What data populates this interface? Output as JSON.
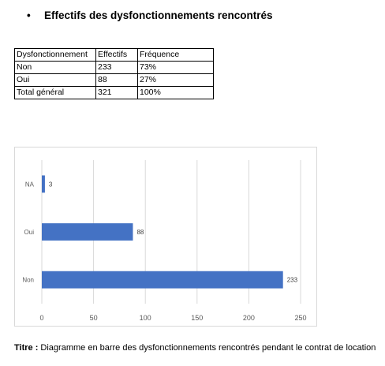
{
  "heading": {
    "bullet": "•",
    "text": "Effectifs des dysfonctionnements rencontrés"
  },
  "table": {
    "headers": [
      "Dysfonctionnement",
      "Effectifs",
      "Fréquence"
    ],
    "rows": [
      [
        "Non",
        "233",
        "73%"
      ],
      [
        "Oui",
        "88",
        "27%"
      ],
      [
        "Total général",
        "321",
        "100%"
      ]
    ]
  },
  "chart_data": {
    "type": "bar",
    "orientation": "horizontal",
    "categories": [
      "NA",
      "Oui",
      "Non"
    ],
    "values": [
      3,
      88,
      233
    ],
    "xlim": [
      0,
      250
    ],
    "xticks": [
      "0",
      "50",
      "100",
      "150",
      "200",
      "250"
    ],
    "grid": true,
    "bar_color": "#4472C4"
  },
  "caption": {
    "label": "Titre :",
    "text": "Diagramme en barre des dysfonctionnements rencontrés pendant le contrat de location"
  }
}
